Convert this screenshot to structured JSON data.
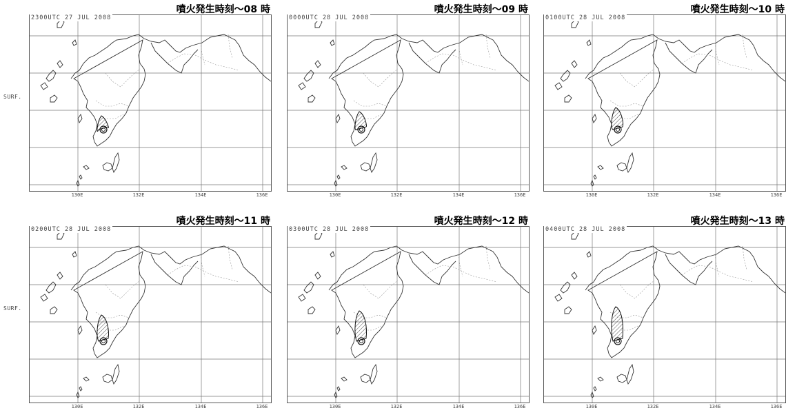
{
  "row_labels": [
    "SURF.",
    "SURF."
  ],
  "longitude_labels": [
    "130E",
    "132E",
    "134E",
    "136E"
  ],
  "panels": [
    {
      "timestamp": "2300UTC 27 JUL 2008",
      "title": "噴火発生時刻～08 時",
      "plume_level": 1
    },
    {
      "timestamp": "0000UTC 28 JUL 2008",
      "title": "噴火発生時刻～09 時",
      "plume_level": 2
    },
    {
      "timestamp": "0100UTC 28 JUL 2008",
      "title": "噴火発生時刻～10 時",
      "plume_level": 3
    },
    {
      "timestamp": "0200UTC 28 JUL 2008",
      "title": "噴火発生時刻～11 時",
      "plume_level": 4
    },
    {
      "timestamp": "0300UTC 28 JUL 2008",
      "title": "噴火発生時刻～12 時",
      "plume_level": 5
    },
    {
      "timestamp": "0400UTC 28 JUL 2008",
      "title": "噴火発生時刻～13 時",
      "plume_level": 6
    }
  ]
}
